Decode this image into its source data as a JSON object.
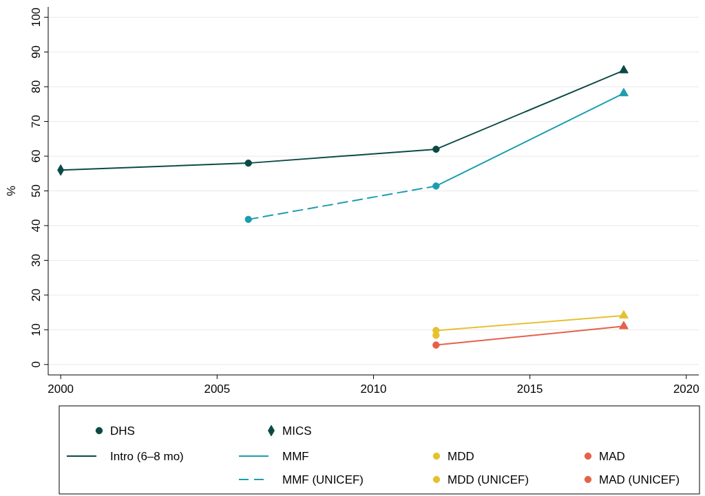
{
  "chart_data": {
    "type": "line",
    "ylabel": "%",
    "xlim": [
      1999.6,
      2020.4
    ],
    "ylim": [
      -3,
      103
    ],
    "xticks": [
      2000,
      2005,
      2010,
      2015,
      2020
    ],
    "yticks": [
      0,
      10,
      20,
      30,
      40,
      50,
      60,
      70,
      80,
      90,
      100
    ],
    "grid": "y",
    "legend": "bottom",
    "series": [
      {
        "name": "DHS",
        "type": "scatter",
        "marker": "circle",
        "x": [
          2006,
          2012,
          2012
        ],
        "values": [
          58,
          62,
          51.4
        ],
        "colors": [
          "#0b4a44",
          "#0b4a44",
          "#1b9db0"
        ]
      },
      {
        "name": "MICS",
        "type": "scatter",
        "marker": "diamond",
        "x": [
          2000
        ],
        "values": [
          56
        ],
        "color": "#0b4a44"
      },
      {
        "name": "Intro (6–8 mo)",
        "type": "line",
        "marker": "none",
        "line_style": "solid",
        "color": "#0b4a44",
        "x": [
          2000,
          2006,
          2012,
          2018
        ],
        "values": [
          56,
          58,
          62,
          84.7
        ]
      },
      {
        "name": "MMF",
        "type": "line",
        "marker": "none",
        "line_style": "solid",
        "color": "#1b9db0",
        "x": [
          2012,
          2018
        ],
        "values": [
          51.4,
          78.1
        ]
      },
      {
        "name": "MDD",
        "type": "scatter",
        "marker": "circle",
        "color": "#e6c12f",
        "x": [
          2012
        ],
        "values": [
          9.8
        ]
      },
      {
        "name": "MAD",
        "type": "scatter",
        "marker": "circle",
        "color": "#e5614a",
        "x": [
          2012
        ],
        "values": [
          5.6
        ]
      },
      {
        "name": "MMF (UNICEF)",
        "type": "line",
        "marker": "none",
        "line_style": "dashed",
        "color": "#1b9db0",
        "x": [
          2006,
          2012
        ],
        "values": [
          41.8,
          51.4
        ]
      },
      {
        "name": "MDD (UNICEF)",
        "type": "scatter",
        "marker": "circle",
        "color": "#e6c12f",
        "x": [
          2012
        ],
        "values": [
          8.4
        ]
      },
      {
        "name": "MAD (UNICEF)",
        "type": "scatter",
        "marker": "circle",
        "color": "#e5614a"
      },
      {
        "type": "line",
        "marker": "none",
        "line_style": "solid",
        "color": "#e6c12f",
        "x": [
          2012,
          2018
        ],
        "values": [
          9.8,
          14.1
        ]
      },
      {
        "type": "line",
        "marker": "none",
        "line_style": "solid",
        "color": "#e5614a",
        "x": [
          2012,
          2018
        ],
        "values": [
          5.6,
          11
        ]
      },
      {
        "type": "scatter",
        "marker": "circle",
        "color": "#1b9db0",
        "x": [
          2006
        ],
        "values": [
          41.8
        ]
      },
      {
        "type": "scatter",
        "marker": "triangle",
        "x": [
          2018,
          2018,
          2018,
          2018
        ],
        "values": [
          84.7,
          78.1,
          14.1,
          11
        ],
        "colors": [
          "#0b4a44",
          "#1b9db0",
          "#e6c12f",
          "#e5614a"
        ]
      }
    ]
  }
}
